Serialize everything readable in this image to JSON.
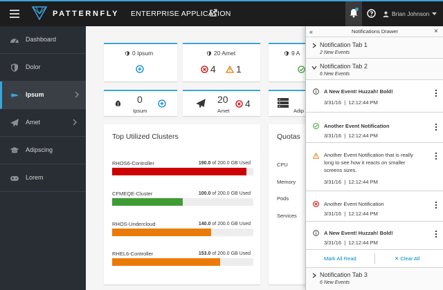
{
  "navbar": {
    "brand_name": "PATTERNFLY",
    "brand_app": "ENTERPRISE APPLICATION",
    "user_name": "Brian Johnson"
  },
  "sidebar": {
    "items": [
      {
        "label": "Dashboard",
        "icon": "dashboard-icon"
      },
      {
        "label": "Dolor",
        "icon": "shield-icon"
      },
      {
        "label": "Ipsum",
        "icon": "space-shuttle-icon",
        "active": true
      },
      {
        "label": "Amet",
        "icon": "paper-plane-icon"
      },
      {
        "label": "Adipscing",
        "icon": "graduation-cap-icon"
      },
      {
        "label": "Lorem",
        "icon": "gamepad-icon"
      }
    ]
  },
  "cards": {
    "c1": {
      "title": "0 Ipsum"
    },
    "c2": {
      "title": "20 Amet",
      "error_count": "4",
      "warning_count": "1"
    },
    "c3": {
      "title": "9 A"
    },
    "c4": {
      "value": "0",
      "label": "Ipsum"
    },
    "c5": {
      "value": "20",
      "label": "Amet",
      "error_count": "4"
    },
    "c6": {
      "label": "Adip"
    }
  },
  "clusters": {
    "title": "Top Utilized Clusters",
    "items": [
      {
        "name": "RHOS6-Controller",
        "used": "190.0",
        "total": "of 200.0 GB",
        "suffix": "Used",
        "fraction": 0.95,
        "color": "#cc0000"
      },
      {
        "name": "CFMEQE-Cluster",
        "used": "100.0",
        "total": "of 200.0 GB",
        "suffix": "Used",
        "fraction": 0.5,
        "color": "#3f9c35"
      },
      {
        "name": "RHOS-Undercloud",
        "used": "140.0",
        "total": "of 200.0 GB",
        "suffix": "Used",
        "fraction": 0.7,
        "color": "#ec7a08"
      },
      {
        "name": "RHEL6-Controller",
        "used": "153.0",
        "total": "of 200.0 GB",
        "suffix": "Used",
        "fraction": 0.765,
        "color": "#ec7a08"
      }
    ]
  },
  "quotas": {
    "title": "Quotas",
    "rows": [
      "CPU",
      "Memory",
      "Pods",
      "Services"
    ]
  },
  "drawer": {
    "title": "Notifications Drawer",
    "tab1": {
      "name": "Notification Tab 1",
      "sub": "2 New Events"
    },
    "tab2": {
      "name": "Notification Tab 2",
      "sub": "6 New Events"
    },
    "tab3": {
      "name": "Notification Tab 3",
      "sub": "6 New Events"
    },
    "notifications": [
      {
        "type": "info",
        "text": "A New Event! Huzzah! Bold!",
        "bold": true,
        "date": "3/31/16",
        "time": "12:12:44 PM"
      },
      {
        "type": "success",
        "text": "Another Event Notification",
        "bold": true,
        "date": "3/31/16",
        "time": "12:12:44 PM"
      },
      {
        "type": "warning",
        "text": "Another Event Notification that is really long to see how it reacts on smaller screens sizes.",
        "bold": false,
        "date": "3/31/16",
        "time": "12:12:44 PM"
      },
      {
        "type": "error",
        "text": "Another Event Notification",
        "bold": false,
        "date": "3/31/16",
        "time": "12:12:44 PM"
      },
      {
        "type": "info",
        "text": "A New Event! Huzzah! Bold!",
        "bold": true,
        "date": "3/31/16",
        "time": "12:12:44 PM"
      }
    ],
    "mark_all_read": "Mark All Read",
    "clear_all": "Clear All"
  },
  "colors": {
    "accent": "#39a5dc",
    "info": "#363636",
    "success": "#3f9c35",
    "warning": "#ec7a08",
    "error": "#cc0000",
    "link": "#0088ce"
  }
}
